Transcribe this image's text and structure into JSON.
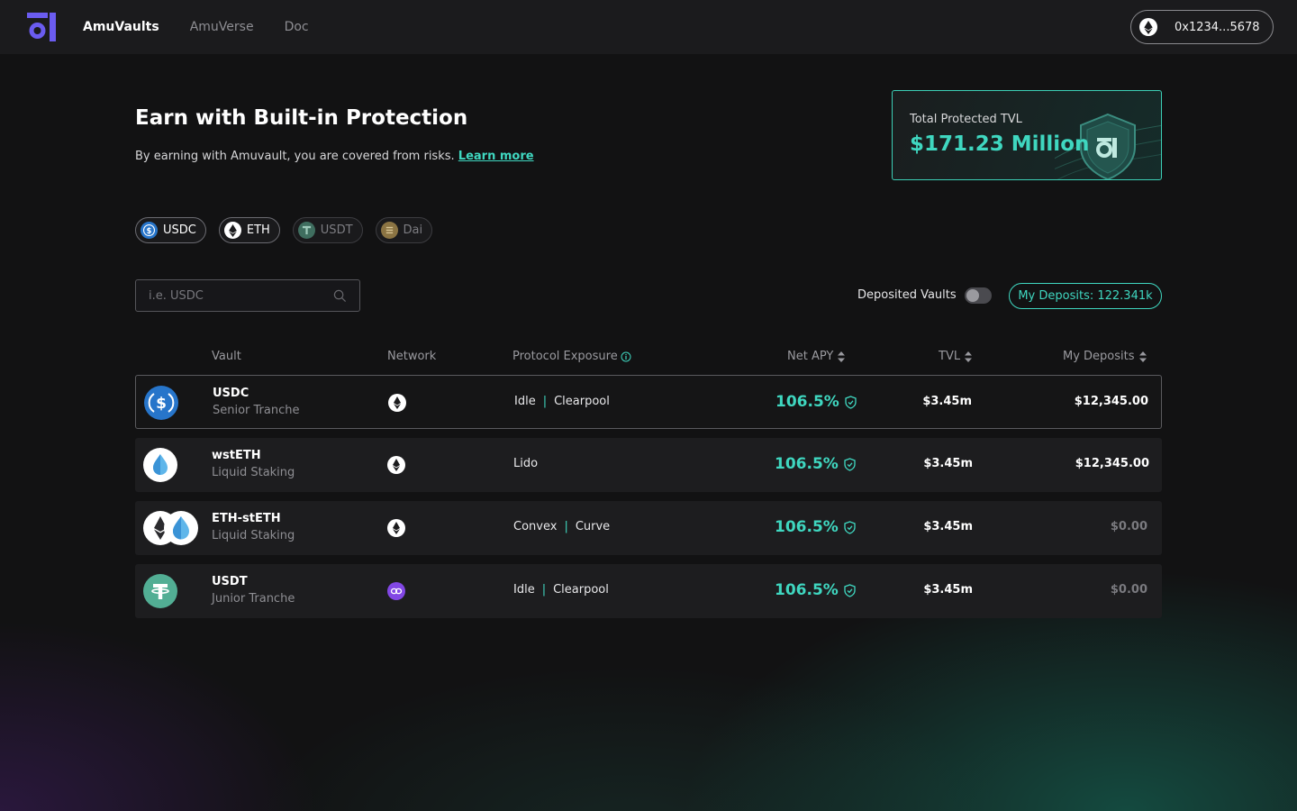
{
  "nav": {
    "brand": "AmuVaults",
    "items": [
      "AmuVerse",
      "Doc"
    ]
  },
  "wallet": {
    "address": "0x1234...5678",
    "network_icon": "ethereum-icon"
  },
  "hero": {
    "title": "Earn with Built-in Protection",
    "subtitle": "By earning with Amuvault, you are covered from risks.",
    "learn_more": "Learn more"
  },
  "tvl_card": {
    "label": "Total Protected TVL",
    "value": "$171.23 Million"
  },
  "tokens": [
    {
      "label": "USDC",
      "icon": "usdc-icon",
      "selected": true
    },
    {
      "label": "ETH",
      "icon": "eth-icon",
      "selected": true
    },
    {
      "label": "USDT",
      "icon": "usdt-icon",
      "selected": false
    },
    {
      "label": "Dai",
      "icon": "dai-icon",
      "selected": false
    }
  ],
  "search": {
    "placeholder": "i.e. USDC",
    "value": ""
  },
  "filters": {
    "deposited_vaults_label": "Deposited Vaults",
    "deposited_vaults_on": false,
    "my_deposits": "My Deposits: 122.341k"
  },
  "table": {
    "headers": {
      "vault": "Vault",
      "network": "Network",
      "exposure": "Protocol Exposure",
      "apy": "Net APY",
      "tvl": "TVL",
      "deposits": "My Deposits"
    },
    "rows": [
      {
        "name": "USDC",
        "sub": "Senior Tranche",
        "network": "ethereum-icon",
        "exposure": [
          "Idle",
          "Clearpool"
        ],
        "apy": "106.5%",
        "tvl": "$3.45m",
        "deposits": "$12,345.00"
      },
      {
        "name": "wstETH",
        "sub": "Liquid Staking",
        "network": "ethereum-icon",
        "exposure": [
          "Lido"
        ],
        "apy": "106.5%",
        "tvl": "$3.45m",
        "deposits": "$12,345.00"
      },
      {
        "name": "ETH-stETH",
        "sub": "Liquid Staking",
        "network": "ethereum-icon",
        "exposure": [
          "Convex",
          "Curve"
        ],
        "apy": "106.5%",
        "tvl": "$3.45m",
        "deposits": "$0.00"
      },
      {
        "name": "USDT",
        "sub": "Junior Tranche",
        "network": "polygon-icon",
        "exposure": [
          "Idle",
          "Clearpool"
        ],
        "apy": "106.5%",
        "tvl": "$3.45m",
        "deposits": "$0.00"
      }
    ]
  },
  "colors": {
    "accent": "#3fd7c0",
    "background": "#121213",
    "topbar": "#1b1b1d",
    "logo": "#6b5cf0"
  }
}
